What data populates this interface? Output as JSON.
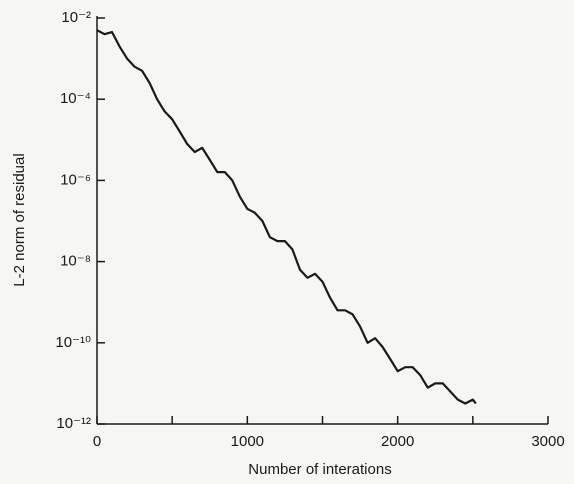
{
  "chart_data": {
    "type": "line",
    "xlabel": "Number of interations",
    "ylabel": "L-2 norm of residual",
    "x": [
      0,
      50,
      100,
      150,
      200,
      250,
      300,
      350,
      400,
      450,
      500,
      550,
      600,
      650,
      700,
      750,
      800,
      850,
      900,
      950,
      1000,
      1050,
      1100,
      1150,
      1200,
      1250,
      1300,
      1350,
      1400,
      1450,
      1500,
      1550,
      1600,
      1650,
      1700,
      1750,
      1800,
      1850,
      1900,
      1950,
      2000,
      2050,
      2100,
      2150,
      2200,
      2250,
      2300,
      2350,
      2400,
      2450,
      2500,
      2520
    ],
    "values": [
      0.005,
      0.004,
      0.0045,
      0.002,
      0.001,
      0.00063,
      0.0005,
      0.00025,
      0.0001,
      5e-05,
      3.2e-05,
      1.6e-05,
      7.9e-06,
      5e-06,
      6.3e-06,
      3.2e-06,
      1.6e-06,
      1.6e-06,
      1e-06,
      4e-07,
      2e-07,
      1.6e-07,
      1e-07,
      4e-08,
      3.2e-08,
      3.2e-08,
      2e-08,
      6.3e-09,
      4e-09,
      5e-09,
      3.2e-09,
      1.3e-09,
      6.3e-10,
      6.3e-10,
      5e-10,
      2.5e-10,
      1e-10,
      1.3e-10,
      7.9e-11,
      4e-11,
      2e-11,
      2.5e-11,
      2.5e-11,
      1.6e-11,
      7.9e-12,
      1e-11,
      1e-11,
      6.3e-12,
      4e-12,
      3.2e-12,
      4e-12,
      3.2e-12
    ],
    "color": "#1a1a1a",
    "xlim": [
      0,
      3000
    ],
    "xticks": [
      0,
      1000,
      2000,
      3000
    ],
    "xminorticks": [
      500,
      1500,
      2500
    ],
    "ylim": [
      1e-12,
      0.01
    ],
    "log_y": true,
    "yticks": [
      {
        "value": 1e-12,
        "label": "10⁻¹²"
      },
      {
        "value": 1e-10,
        "label": "10⁻¹⁰"
      },
      {
        "value": 1e-08,
        "label": "10⁻⁸"
      },
      {
        "value": 1e-06,
        "label": "10⁻⁶"
      },
      {
        "value": 0.0001,
        "label": "10⁻⁴"
      },
      {
        "value": 0.01,
        "label": "10⁻²"
      }
    ],
    "grid": false
  }
}
